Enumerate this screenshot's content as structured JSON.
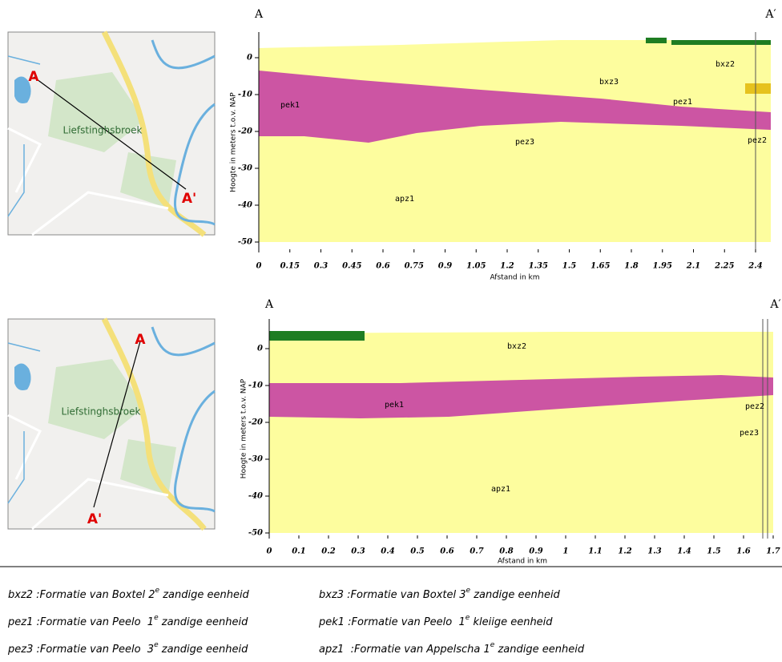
{
  "sections": [
    {
      "map": {
        "place": "Liefstinghsbroek",
        "start": "A",
        "end": "A'"
      },
      "profile": {
        "start": "A",
        "end": "A′",
        "y_axis_label": "Hoogte in meters t.o.v. NAP",
        "x_axis_label": "Afstand in km",
        "yticks": [
          0,
          -10,
          -20,
          -30,
          -40,
          -50
        ],
        "xticks": [
          0,
          0.15,
          0.3,
          0.45,
          0.6,
          0.75,
          0.9,
          1.05,
          1.2,
          1.35,
          1.5,
          1.65,
          1.8,
          1.95,
          2.1,
          2.25,
          2.4
        ],
        "units": [
          "bxz2",
          "bxz3",
          "pek1",
          "pez1",
          "pez3",
          "pez2",
          "apz1"
        ]
      }
    },
    {
      "map": {
        "place": "Liefstinghsbroek",
        "start": "A",
        "end": "A'"
      },
      "profile": {
        "start": "A",
        "end": "A′",
        "y_axis_label": "Hoogte in meters t.o.v. NAP",
        "x_axis_label": "Afstand in km",
        "yticks": [
          0,
          -10,
          -20,
          -30,
          -40,
          -50
        ],
        "xticks": [
          0,
          0.1,
          0.2,
          0.3,
          0.4,
          0.5,
          0.6,
          0.7,
          0.8,
          0.9,
          1,
          1.1,
          1.2,
          1.3,
          1.4,
          1.5,
          1.6,
          1.7
        ],
        "units": [
          "bxz2",
          "pek1",
          "pez2",
          "pez3",
          "apz1"
        ]
      }
    }
  ],
  "legend": [
    {
      "code": "bxz2 :Formatie van Boxtel 2",
      "sup": "e",
      "rest": " zandige eenheid"
    },
    {
      "code": "bxz3 :Formatie van Boxtel 3",
      "sup": "e",
      "rest": " zandige eenheid"
    },
    {
      "code": "pez1 :Formatie van Peelo  1",
      "sup": "e",
      "rest": " zandige eenheid"
    },
    {
      "code": "pek1 :Formatie van Peelo  1",
      "sup": "e",
      "rest": " kleiige eenheid"
    },
    {
      "code": "pez3 :Formatie van Peelo  3",
      "sup": "e",
      "rest": " zandige eenheid"
    },
    {
      "code": "apz1  :Formatie van Appelscha 1",
      "sup": "e",
      "rest": " zandige eenheid"
    }
  ]
}
